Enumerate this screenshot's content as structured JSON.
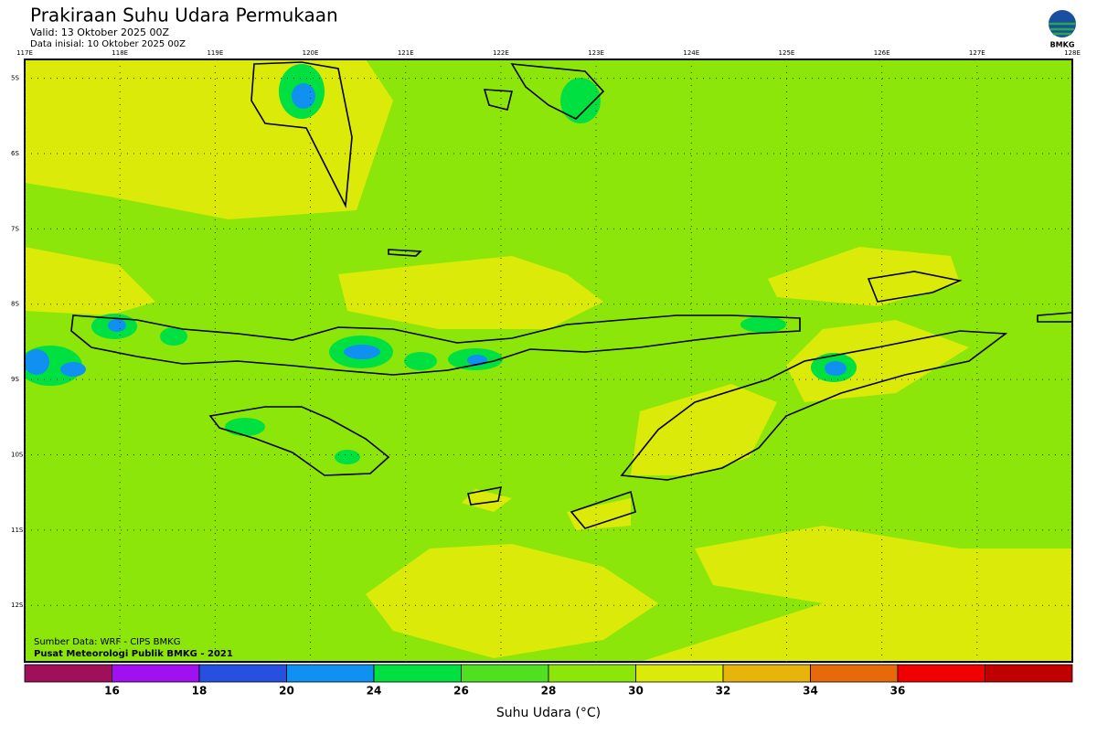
{
  "header": {
    "title": "Prakiraan Suhu Udara Permukaan",
    "valid": "Valid: 13 Oktober 2025 00Z",
    "initial": "Data inisial: 10 Oktober 2025 00Z"
  },
  "logo": {
    "label": "BMKG"
  },
  "map": {
    "lon_range": [
      117,
      128
    ],
    "lat_range": [
      -4.75,
      -12.75
    ],
    "lon_labels": [
      {
        "value": 117,
        "label": "117E"
      },
      {
        "value": 118,
        "label": "118E"
      },
      {
        "value": 119,
        "label": "119E"
      },
      {
        "value": 120,
        "label": "120E"
      },
      {
        "value": 121,
        "label": "121E"
      },
      {
        "value": 122,
        "label": "122E"
      },
      {
        "value": 123,
        "label": "123E"
      },
      {
        "value": 124,
        "label": "124E"
      },
      {
        "value": 125,
        "label": "125E"
      },
      {
        "value": 126,
        "label": "126E"
      },
      {
        "value": 127,
        "label": "127E"
      },
      {
        "value": 128,
        "label": "128E"
      }
    ],
    "lat_labels": [
      {
        "value": -5,
        "label": "5S"
      },
      {
        "value": -6,
        "label": "6S"
      },
      {
        "value": -7,
        "label": "7S"
      },
      {
        "value": -8,
        "label": "8S"
      },
      {
        "value": -9,
        "label": "9S"
      },
      {
        "value": -10,
        "label": "10S"
      },
      {
        "value": -11,
        "label": "11S"
      },
      {
        "value": -12,
        "label": "12S"
      }
    ],
    "credits": [
      "Sumber Data: WRF - CIPS BMKG",
      "Pusat Meteorologi Publik BMKG - 2021"
    ]
  },
  "colorbar": {
    "colors": [
      "#a0105a",
      "#a010f0",
      "#2850e0",
      "#1090f0",
      "#00e040",
      "#50e020",
      "#8ce60a",
      "#dcea0a",
      "#e6b40a",
      "#e66a0a",
      "#f00000",
      "#c00000"
    ],
    "ticks": [
      16,
      18,
      20,
      24,
      26,
      28,
      30,
      32,
      34,
      36
    ],
    "label": "Suhu Udara (°C)"
  }
}
